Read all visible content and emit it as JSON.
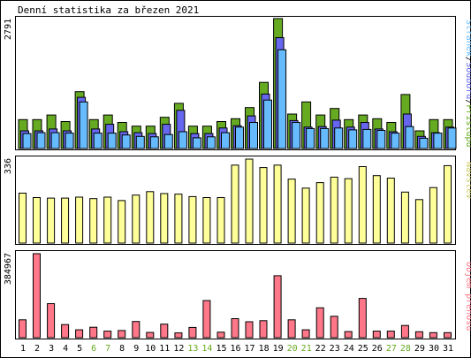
{
  "title": "Denní statistika za březen 2021",
  "colors": {
    "background": "#ffffff",
    "frame_line": "#000000",
    "bar_outline": "#000000",
    "pristupy": "#66aa22",
    "soubory": "#6666ee",
    "stranky": "#66bbff",
    "navstevy": "#ffff99",
    "objem": "#ff7788",
    "weekend_label": "#66aa22",
    "weekday_label": "#000000"
  },
  "legend": {
    "top": {
      "stranky": "Stránek",
      "soubory": "Souborů",
      "pristupy": "Přístupů",
      "separator": "/"
    },
    "middle": "Návštěv",
    "bottom": "Objem přenosu"
  },
  "chart_data": [
    {
      "type": "bar",
      "panel": "hits-files-pages",
      "x": [
        1,
        2,
        3,
        4,
        5,
        6,
        7,
        8,
        9,
        10,
        11,
        12,
        13,
        14,
        15,
        16,
        17,
        18,
        19,
        20,
        21,
        22,
        23,
        24,
        25,
        26,
        27,
        28,
        29,
        30,
        31
      ],
      "ymax_label": "2791",
      "ylim": [
        0,
        2791
      ],
      "series": [
        {
          "name": "Přístupů",
          "color_key": "pristupy",
          "values": [
            620,
            620,
            720,
            580,
            1220,
            620,
            720,
            560,
            480,
            480,
            670,
            970,
            480,
            480,
            580,
            640,
            880,
            1420,
            2791,
            740,
            1000,
            720,
            860,
            620,
            720,
            640,
            560,
            1160,
            380,
            620,
            620
          ]
        },
        {
          "name": "Souborů",
          "color_key": "soubory",
          "values": [
            380,
            380,
            420,
            380,
            1100,
            420,
            520,
            360,
            340,
            320,
            520,
            820,
            320,
            320,
            440,
            490,
            700,
            1170,
            2380,
            600,
            460,
            470,
            610,
            460,
            560,
            420,
            360,
            740,
            260,
            340,
            460
          ]
        },
        {
          "name": "Stránek",
          "color_key": "stranky",
          "values": [
            320,
            340,
            340,
            330,
            1000,
            330,
            330,
            290,
            260,
            250,
            300,
            360,
            230,
            250,
            340,
            460,
            560,
            1040,
            2120,
            560,
            430,
            430,
            440,
            400,
            410,
            390,
            330,
            470,
            220,
            330,
            440
          ]
        }
      ]
    },
    {
      "type": "bar",
      "panel": "visits",
      "x": [
        1,
        2,
        3,
        4,
        5,
        6,
        7,
        8,
        9,
        10,
        11,
        12,
        13,
        14,
        15,
        16,
        17,
        18,
        19,
        20,
        21,
        22,
        23,
        24,
        25,
        26,
        27,
        28,
        29,
        30,
        31
      ],
      "ymax_label": "336",
      "ylim": [
        0,
        336
      ],
      "series": [
        {
          "name": "Návštěv",
          "color_key": "navstevy",
          "values": [
            200,
            182,
            180,
            180,
            184,
            178,
            184,
            170,
            192,
            206,
            198,
            196,
            186,
            182,
            182,
            312,
            336,
            302,
            312,
            256,
            220,
            242,
            264,
            258,
            306,
            270,
            260,
            204,
            174,
            222,
            310
          ]
        }
      ]
    },
    {
      "type": "bar",
      "panel": "transfer-volume",
      "x": [
        1,
        2,
        3,
        4,
        5,
        6,
        7,
        8,
        9,
        10,
        11,
        12,
        13,
        14,
        15,
        16,
        17,
        18,
        19,
        20,
        21,
        22,
        23,
        24,
        25,
        26,
        27,
        28,
        29,
        30,
        31
      ],
      "ymax_label": "384967",
      "ylim": [
        0,
        384967
      ],
      "series": [
        {
          "name": "Objem přenosu",
          "color_key": "objem",
          "values": [
            82000,
            384967,
            156000,
            60000,
            36000,
            48000,
            30000,
            33000,
            74000,
            24000,
            62000,
            22000,
            47000,
            170000,
            25000,
            87000,
            73000,
            78000,
            284000,
            82000,
            36000,
            137000,
            98000,
            28000,
            180000,
            30000,
            30000,
            56000,
            27000,
            23000,
            23000
          ]
        }
      ]
    }
  ],
  "x_axis": {
    "labels": [
      "1",
      "2",
      "3",
      "4",
      "5",
      "6",
      "7",
      "8",
      "9",
      "10",
      "11",
      "12",
      "13",
      "14",
      "15",
      "16",
      "17",
      "18",
      "19",
      "20",
      "21",
      "22",
      "23",
      "24",
      "25",
      "26",
      "27",
      "28",
      "29",
      "30",
      "31"
    ],
    "weekend_days": [
      6,
      7,
      13,
      14,
      20,
      21,
      27,
      28
    ]
  }
}
